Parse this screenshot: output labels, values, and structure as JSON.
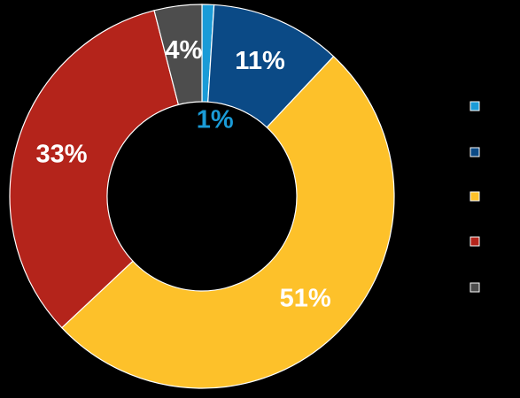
{
  "chart_data": {
    "type": "donut",
    "values": [
      1,
      11,
      51,
      33,
      4
    ],
    "value_labels": [
      "1%",
      "11%",
      "51%",
      "33%",
      "4%"
    ],
    "colors": [
      "#1a9bd7",
      "#0b4a86",
      "#fdc12a",
      "#b4241b",
      "#4d4d4d"
    ]
  }
}
